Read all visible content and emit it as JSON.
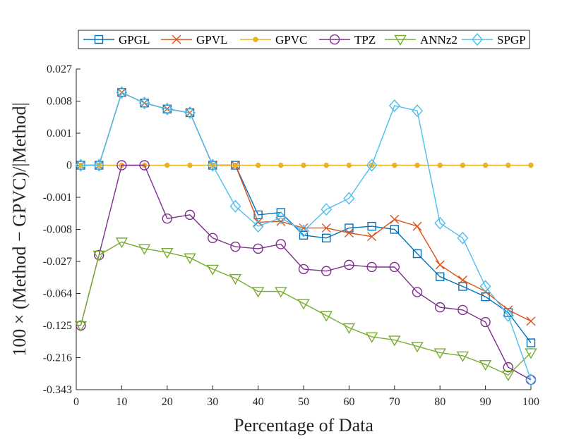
{
  "chart_data": {
    "type": "line",
    "title": "",
    "xlabel": "Percentage of Data",
    "ylabel": "100 × (Method − GPVC)/|Method|",
    "xlim": [
      0,
      100
    ],
    "xticks": [
      0,
      10,
      20,
      30,
      40,
      50,
      60,
      70,
      80,
      90,
      100
    ],
    "yticks": [
      "0.027",
      "0.008",
      "0.001",
      "0",
      "-0.001",
      "-0.008",
      "-0.027",
      "-0.064",
      "-0.125",
      "-0.216",
      "-0.343"
    ],
    "y_scale": "cube-root",
    "grid": false,
    "legend_position": "top",
    "x": [
      1,
      5,
      10,
      15,
      20,
      25,
      30,
      35,
      40,
      45,
      50,
      55,
      60,
      65,
      70,
      75,
      80,
      85,
      90,
      95,
      100
    ],
    "series": [
      {
        "name": "GPGL",
        "color": "#0072BD",
        "marker": "square",
        "values": [
          0,
          0,
          0.0117,
          0.0073,
          0.0054,
          0.0044,
          0,
          0,
          -0.0037,
          -0.0032,
          -0.0104,
          -0.0117,
          -0.0075,
          -0.0069,
          -0.008,
          -0.021,
          -0.042,
          -0.054,
          -0.069,
          -0.097,
          -0.17
        ]
      },
      {
        "name": "GPVL",
        "color": "#D95319",
        "marker": "x",
        "values": [
          0,
          0,
          0.0117,
          0.0073,
          0.0054,
          0.0044,
          0,
          0,
          -0.0056,
          -0.0054,
          -0.0075,
          -0.0075,
          -0.0094,
          -0.011,
          -0.0048,
          -0.0069,
          -0.03,
          -0.046,
          -0.061,
          -0.092,
          -0.115
        ]
      },
      {
        "name": "GPVC",
        "color": "#EDB120",
        "marker": "dot",
        "values": [
          0,
          0,
          0,
          0,
          0,
          0,
          0,
          0,
          0,
          0,
          0,
          0,
          0,
          0,
          0,
          0,
          0,
          0,
          0,
          0,
          0
        ]
      },
      {
        "name": "TPZ",
        "color": "#7E2F8E",
        "marker": "circle",
        "values": [
          -0.125,
          -0.022,
          0,
          0,
          -0.0046,
          -0.0037,
          -0.0117,
          -0.0164,
          -0.0176,
          -0.0149,
          -0.034,
          -0.036,
          -0.03,
          -0.032,
          -0.032,
          -0.062,
          -0.087,
          -0.092,
          -0.117,
          -0.25,
          -0.3
        ]
      },
      {
        "name": "ANNz2",
        "color": "#77AC30",
        "marker": "triangle-down",
        "values": [
          -0.125,
          -0.022,
          -0.0137,
          -0.0176,
          -0.0201,
          -0.024,
          -0.034,
          -0.044,
          -0.061,
          -0.061,
          -0.08,
          -0.103,
          -0.13,
          -0.153,
          -0.162,
          -0.18,
          -0.2,
          -0.21,
          -0.24,
          -0.28,
          -0.2
        ]
      },
      {
        "name": "SPGP",
        "color": "#4DBEEE",
        "marker": "diamond",
        "values": [
          0,
          0,
          0.0117,
          0.0073,
          0.0054,
          0.0044,
          0,
          -0.0021,
          -0.0069,
          -0.0044,
          -0.0086,
          -0.0026,
          -0.0011,
          0,
          0.0064,
          0.0049,
          -0.0059,
          -0.0117,
          -0.054,
          -0.103,
          -0.3
        ]
      }
    ]
  }
}
